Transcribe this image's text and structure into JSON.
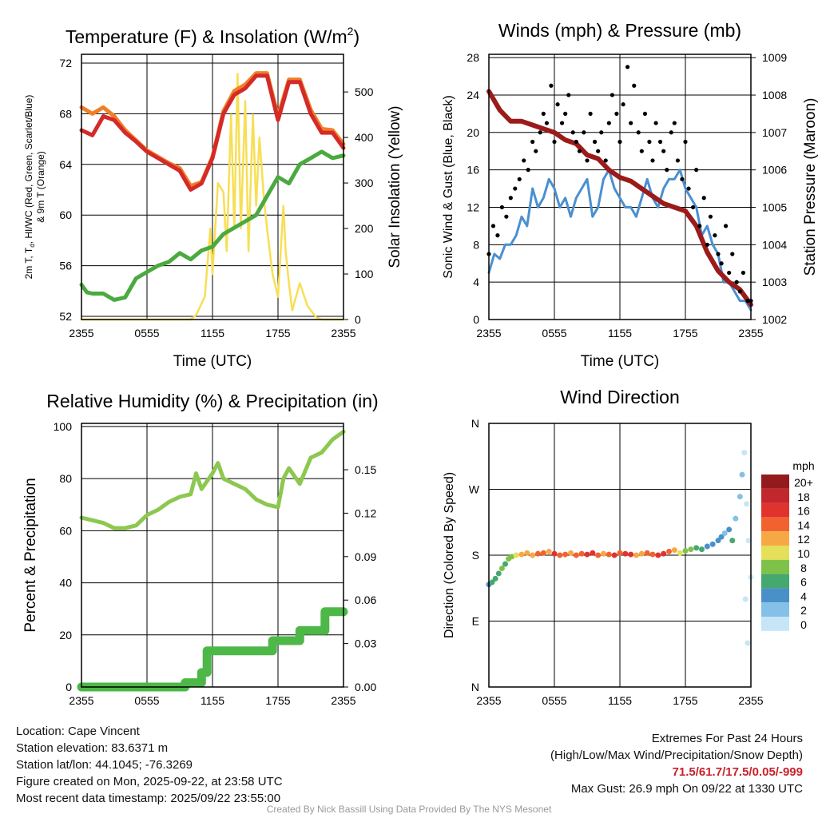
{
  "chart_data": [
    {
      "type": "line",
      "title": "Temperature (F) & Insolation (W/m",
      "title_sup": "2",
      "title_end": ")",
      "xlabel": "Time (UTC)",
      "ylabel_parts": [
        "2m T, T",
        "d",
        ", HI/WC (Red, Green, Scarlet/Blue)"
      ],
      "ylabel_line2": "& 9m T (Orange)",
      "ylabel2": "Solar Insolation (Yellow)",
      "xticks": [
        "2355",
        "0555",
        "1155",
        "1755",
        "2355"
      ],
      "yticks": [
        52,
        56,
        60,
        64,
        68,
        72
      ],
      "ylim": [
        51.75,
        72.69
      ],
      "y2ticks": [
        0,
        100,
        200,
        300,
        400,
        500
      ],
      "y2lim": [
        0,
        582.7
      ],
      "series": [
        {
          "name": "Solar Insolation",
          "color": "#f7df55",
          "axis": "right",
          "width": 2.5,
          "x": [
            0,
            10,
            10.5,
            11.3,
            11.8,
            12,
            12.5,
            13,
            13.3,
            13.7,
            14,
            14.3,
            14.6,
            15,
            15.3,
            15.7,
            16,
            16.3,
            16.7,
            17,
            17.5,
            18,
            18.5,
            18.7,
            19,
            19.3,
            20,
            20.7,
            21.5,
            22,
            24
          ],
          "y": [
            0,
            0,
            10,
            50,
            200,
            100,
            300,
            280,
            150,
            450,
            200,
            540,
            200,
            480,
            150,
            450,
            250,
            400,
            270,
            200,
            100,
            50,
            250,
            150,
            80,
            20,
            80,
            30,
            5,
            0,
            0
          ]
        },
        {
          "name": "2m Dewpoint",
          "color": "#4aaa3f",
          "axis": "left",
          "width": 5,
          "x": [
            0,
            0.5,
            1,
            2,
            3,
            4,
            5,
            6,
            7,
            8,
            9,
            10,
            11,
            12,
            13,
            14,
            15,
            16,
            17,
            18,
            19,
            20,
            21,
            22,
            23,
            24
          ],
          "y": [
            54.5,
            53.9,
            53.8,
            53.8,
            53.3,
            53.5,
            55,
            55.5,
            56,
            56.3,
            57,
            56.5,
            57.2,
            57.5,
            58.5,
            59,
            59.5,
            60,
            61.5,
            63,
            62.5,
            64,
            64.5,
            65,
            64.5,
            64.7
          ]
        },
        {
          "name": "9m Temperature",
          "color": "#f07f28",
          "axis": "left",
          "width": 5,
          "x": [
            0,
            1,
            2,
            3,
            4,
            5,
            6,
            7,
            8,
            9,
            10,
            11,
            12,
            13,
            14,
            15,
            16,
            17,
            18,
            19,
            20,
            21,
            22,
            23,
            24
          ],
          "y": [
            68.5,
            68,
            68.5,
            67.8,
            66.7,
            65.9,
            65.1,
            64.6,
            64.1,
            63.7,
            62.3,
            62.6,
            64.6,
            68.2,
            69.8,
            70.3,
            71.2,
            71.2,
            67.8,
            70.7,
            70.7,
            68.3,
            66.8,
            66.7,
            65.6
          ]
        },
        {
          "name": "2m Temperature",
          "color": "#d42a28",
          "axis": "left",
          "width": 5,
          "x": [
            0,
            1,
            2,
            3,
            4,
            5,
            6,
            7,
            8,
            9,
            10,
            11,
            12,
            13,
            14,
            15,
            16,
            17,
            18,
            19,
            20,
            21,
            22,
            23,
            24
          ],
          "y": [
            66.7,
            66.3,
            67.8,
            67.5,
            66.5,
            65.8,
            65,
            64.5,
            64,
            63.5,
            62,
            62.5,
            64.5,
            68,
            69.5,
            70,
            71,
            71,
            67.5,
            70.5,
            70.5,
            68,
            66.5,
            66.5,
            65.3
          ]
        }
      ]
    },
    {
      "type": "line",
      "title": "Winds (mph) & Pressure (mb)",
      "xlabel": "Time (UTC)",
      "ylabel": "Sonic Wind & Gust (Blue, Black)",
      "ylabel2": "Station Pressure (Maroon)",
      "xticks": [
        "2355",
        "0555",
        "1155",
        "1755",
        "2355"
      ],
      "yticks": [
        0,
        4,
        8,
        12,
        16,
        20,
        24,
        28
      ],
      "ylim": [
        0,
        28.35
      ],
      "y2ticks": [
        1002,
        1003,
        1004,
        1005,
        1006,
        1007,
        1008,
        1009
      ],
      "y2lim": [
        1002,
        1009.09
      ],
      "series": [
        {
          "name": "Sonic Wind",
          "color": "#4a90d0",
          "axis": "left",
          "width": 3,
          "x": [
            0,
            0.5,
            1,
            1.5,
            2,
            2.5,
            3,
            3.5,
            4,
            4.5,
            5,
            5.5,
            6,
            6.5,
            7,
            7.5,
            8,
            8.5,
            9,
            9.5,
            10,
            10.5,
            11,
            11.5,
            12,
            12.5,
            13,
            13.5,
            14,
            14.5,
            15,
            15.5,
            16,
            16.5,
            17,
            17.5,
            18,
            18.5,
            19,
            19.5,
            20,
            20.5,
            21,
            21.5,
            22,
            22.5,
            23,
            23.5,
            24
          ],
          "y": [
            5,
            7,
            6.5,
            8,
            8,
            9,
            11,
            10,
            14,
            12,
            13,
            15,
            14,
            12,
            13,
            11,
            13,
            14,
            15,
            11,
            12,
            15,
            16,
            14,
            13,
            12,
            12,
            11,
            13,
            15,
            13,
            12,
            14,
            15,
            15,
            16,
            14,
            13,
            12,
            9,
            10,
            8,
            7,
            4,
            4,
            3,
            2,
            2,
            1
          ]
        },
        {
          "name": "Station Pressure",
          "color": "#9b1b1b",
          "axis": "right",
          "width": 6,
          "x": [
            0,
            1,
            2,
            3,
            4,
            5,
            6,
            7,
            8,
            9,
            10,
            11,
            12,
            13,
            14,
            15,
            16,
            17,
            18,
            19,
            20,
            21,
            22,
            23,
            24
          ],
          "y": [
            1008.1,
            1007.6,
            1007.3,
            1007.3,
            1007.2,
            1007.1,
            1007.0,
            1006.8,
            1006.7,
            1006.4,
            1006.3,
            1006.0,
            1005.8,
            1005.7,
            1005.5,
            1005.3,
            1005.1,
            1005.0,
            1004.9,
            1004.5,
            1003.8,
            1003.3,
            1003.0,
            1002.8,
            1002.4
          ]
        },
        {
          "name": "Gust",
          "type": "scatter",
          "color": "#000000",
          "axis": "left",
          "x": [
            0,
            0.4,
            0.8,
            1.2,
            1.6,
            2,
            2.4,
            2.8,
            3.2,
            3.6,
            4,
            4.3,
            4.7,
            5,
            5.3,
            5.7,
            6,
            6.3,
            6.7,
            7,
            7.3,
            7.7,
            8,
            8.3,
            8.7,
            9,
            9.3,
            9.7,
            10,
            10.3,
            10.7,
            11,
            11.3,
            11.7,
            12,
            12.3,
            12.7,
            13,
            13.3,
            13.7,
            14,
            14.3,
            14.7,
            15,
            15.3,
            15.7,
            16,
            16.3,
            16.7,
            17,
            17.3,
            17.7,
            18,
            18.3,
            18.7,
            19,
            19.3,
            19.7,
            20,
            20.3,
            20.7,
            21,
            21.3,
            21.7,
            22,
            22.3,
            22.7,
            23,
            23.3,
            23.7,
            24
          ],
          "y": [
            7,
            10,
            9,
            12,
            11,
            13,
            14,
            15,
            17,
            16,
            19,
            18,
            20,
            22,
            21,
            25,
            19,
            23,
            21,
            22,
            24,
            20,
            19,
            18,
            20,
            17,
            22,
            19,
            18,
            20,
            17,
            21,
            24,
            22,
            19,
            23,
            27,
            21,
            25,
            20,
            18,
            22,
            19,
            17,
            21,
            19,
            18,
            16,
            20,
            21,
            17,
            15,
            19,
            14,
            12,
            16,
            10,
            13,
            8,
            11,
            9,
            7,
            6,
            10,
            5,
            7,
            4,
            3,
            5,
            2,
            2
          ]
        }
      ]
    },
    {
      "type": "line",
      "title": "Relative Humidity (%) & Precipitation (in)",
      "ylabel": "Percent & Precipitation",
      "xticks": [
        "2355",
        "0555",
        "1155",
        "1755",
        "2355"
      ],
      "yticks": [
        0,
        20,
        40,
        60,
        80,
        100
      ],
      "ylim": [
        0,
        101.2
      ],
      "y2ticks": [
        0.0,
        0.03,
        0.06,
        0.09,
        0.12,
        0.15
      ],
      "y2lim": [
        0,
        0.182
      ],
      "series": [
        {
          "name": "Relative Humidity",
          "color": "#8cc850",
          "axis": "left",
          "width": 5,
          "x": [
            0,
            1,
            2,
            3,
            4,
            5,
            6,
            7,
            8,
            9,
            10,
            10.5,
            11,
            12,
            12.5,
            13,
            14,
            15,
            16,
            17,
            18,
            18.5,
            19,
            20,
            21,
            22,
            23,
            24
          ],
          "y": [
            65,
            64,
            63,
            61,
            61,
            62,
            66,
            68,
            71,
            73,
            74,
            82,
            76,
            82,
            86,
            80,
            78,
            76,
            72,
            70,
            69,
            80,
            84,
            78,
            88,
            90,
            95,
            98
          ]
        },
        {
          "name": "Precipitation",
          "color": "#4db848",
          "axis": "right",
          "width": 11,
          "x": [
            0,
            9.5,
            9.5,
            11,
            11,
            11.5,
            11.5,
            17.5,
            17.5,
            20,
            20,
            22.3,
            22.3,
            24
          ],
          "y": [
            0,
            0,
            0.003,
            0.003,
            0.01,
            0.01,
            0.025,
            0.025,
            0.032,
            0.032,
            0.039,
            0.039,
            0.052,
            0.052
          ]
        }
      ]
    },
    {
      "type": "scatter",
      "title": "Wind Direction",
      "ylabel": "Direction (Colored By Speed)",
      "xticks": [
        "2355",
        "0555",
        "1155",
        "1755",
        "2355"
      ],
      "yticks": [
        0,
        90,
        180,
        270,
        360
      ],
      "ytick_labels": [
        "N",
        "E",
        "S",
        "W",
        "N"
      ],
      "ylim": [
        0,
        360
      ],
      "legend": {
        "title": "mph",
        "labels": [
          "20+",
          "18",
          "16",
          "14",
          "12",
          "10",
          "8",
          "6",
          "4",
          "2",
          "0"
        ],
        "colors": [
          "#931a1d",
          "#c1272d",
          "#e0332d",
          "#f2622e",
          "#f6a845",
          "#e6df5a",
          "#7fc24a",
          "#45a86e",
          "#4a90c8",
          "#85c0e8",
          "#c6e6f7"
        ],
        "placement": "right"
      },
      "points": {
        "x": [
          0,
          0.3,
          0.6,
          0.9,
          1.2,
          1.5,
          1.8,
          2.1,
          2.5,
          3,
          3.5,
          4,
          4.5,
          5,
          5.5,
          6,
          6.5,
          7,
          7.5,
          8,
          8.5,
          9,
          9.5,
          10,
          10.5,
          11,
          11.5,
          12,
          12.5,
          13,
          13.5,
          14,
          14.5,
          15,
          15.5,
          16,
          16.5,
          17,
          17.5,
          18,
          18.5,
          19,
          19.5,
          20,
          20.5,
          21,
          21.3,
          21.6,
          22,
          22.3,
          22.6,
          23,
          23.2,
          23.4,
          23.6,
          23.8,
          24,
          23.5,
          23.7
        ],
        "dir": [
          140,
          143,
          148,
          155,
          162,
          168,
          175,
          178,
          180,
          181,
          183,
          180,
          182,
          183,
          185,
          182,
          180,
          181,
          183,
          180,
          182,
          181,
          183,
          180,
          182,
          181,
          180,
          183,
          182,
          181,
          180,
          182,
          183,
          181,
          180,
          182,
          185,
          187,
          183,
          186,
          188,
          190,
          188,
          192,
          195,
          200,
          205,
          210,
          215,
          200,
          230,
          260,
          290,
          320,
          250,
          200,
          150,
          120,
          60
        ],
        "speed": [
          5,
          6,
          6,
          7,
          8,
          7,
          8,
          9,
          11,
          12,
          12,
          13,
          14,
          15,
          13,
          16,
          15,
          14,
          13,
          15,
          14,
          16,
          17,
          15,
          13,
          14,
          16,
          15,
          17,
          16,
          13,
          12,
          14,
          15,
          16,
          17,
          14,
          12,
          10,
          8,
          8,
          7,
          6,
          5,
          4,
          4,
          5,
          3,
          4,
          6,
          3,
          2,
          2,
          1,
          1,
          1,
          1,
          1,
          1
        ]
      }
    }
  ],
  "footer": {
    "location": "Location: Cape Vincent",
    "elevation": "Station elevation: 83.6371 m",
    "latlon": "Station lat/lon: 44.1045; -76.3269",
    "created": "Figure created on Mon, 2025-09-22, at 23:58 UTC",
    "recent": "Most recent data timestamp: 2025/09/22 23:55:00",
    "extremes_title": "Extremes For Past 24 Hours",
    "extremes_desc": "(High/Low/Max Wind/Precipitation/Snow Depth)",
    "extremes_values": "71.5/61.7/17.5/0.05/-999",
    "max_gust": "Max Gust: 26.9 mph On 09/22 at 1330 UTC",
    "credit": "Created By Nick Bassill Using Data Provided By The NYS Mesonet"
  }
}
